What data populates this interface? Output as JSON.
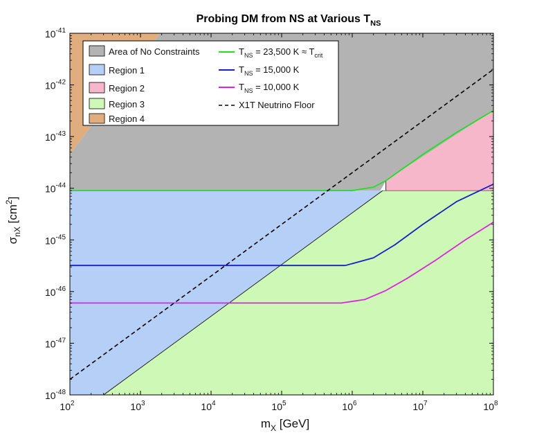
{
  "chart_data": {
    "type": "area",
    "title": "Probing DM from NS at Various T",
    "title_sub": "NS",
    "xlabel": "m",
    "xlabel_sub": "X",
    "xlabel_unit": " [GeV]",
    "ylabel": "σ",
    "ylabel_sub": "nX",
    "ylabel_unit": " [cm",
    "ylabel_unit_sup": "2",
    "ylabel_unit_end": "]",
    "xscale": "log",
    "yscale": "log",
    "xlim": [
      100,
      100000000
    ],
    "ylim": [
      1e-48,
      1e-41
    ],
    "x_ticks": [
      {
        "value": 100,
        "base": "10",
        "exp": "2"
      },
      {
        "value": 1000,
        "base": "10",
        "exp": "3"
      },
      {
        "value": 10000,
        "base": "10",
        "exp": "4"
      },
      {
        "value": 100000,
        "base": "10",
        "exp": "5"
      },
      {
        "value": 1000000,
        "base": "10",
        "exp": "6"
      },
      {
        "value": 10000000,
        "base": "10",
        "exp": "7"
      },
      {
        "value": 100000000,
        "base": "10",
        "exp": "8"
      }
    ],
    "y_ticks": [
      {
        "value": 1e-48,
        "base": "10",
        "exp": "-48"
      },
      {
        "value": 1e-47,
        "base": "10",
        "exp": "-47"
      },
      {
        "value": 1e-46,
        "base": "10",
        "exp": "-46"
      },
      {
        "value": 1e-45,
        "base": "10",
        "exp": "-45"
      },
      {
        "value": 1e-44,
        "base": "10",
        "exp": "-44"
      },
      {
        "value": 1e-43,
        "base": "10",
        "exp": "-43"
      },
      {
        "value": 1e-42,
        "base": "10",
        "exp": "-42"
      },
      {
        "value": 1e-41,
        "base": "10",
        "exp": "-41"
      }
    ],
    "regions": [
      {
        "name": "region-4",
        "label": "Region 4",
        "color": "#e0ad7e",
        "points": [
          [
            100,
            4.5e-44
          ],
          [
            100,
            1e-41
          ],
          [
            1900,
            1e-41
          ]
        ]
      },
      {
        "name": "area-of-no-constraints",
        "label": "Area of No Constraints",
        "color": "#b3b3b3",
        "points": [
          [
            100,
            4.5e-44
          ],
          [
            1900,
            1e-41
          ],
          [
            100000000,
            1e-41
          ],
          [
            100000000,
            3.2e-43
          ],
          [
            3000000,
            1.4e-44
          ],
          [
            2500000,
            9e-45
          ],
          [
            100,
            9e-45
          ]
        ]
      },
      {
        "name": "region-2",
        "label": "Region 2",
        "color": "#f7b7cb",
        "points": [
          [
            3000000,
            1.4e-44
          ],
          [
            100000000,
            3.2e-43
          ],
          [
            100000000,
            9e-45
          ],
          [
            3000000,
            9e-45
          ]
        ]
      },
      {
        "name": "region-1",
        "label": "Region 1",
        "color": "#b5cff7",
        "points": [
          [
            100,
            9e-45
          ],
          [
            2700000,
            9e-45
          ],
          [
            300,
            1e-48
          ],
          [
            100,
            1e-48
          ]
        ]
      },
      {
        "name": "region-3",
        "label": "Region 3",
        "color": "#cdf8b5",
        "points": [
          [
            300,
            1e-48
          ],
          [
            2700000,
            9e-45
          ],
          [
            100000000,
            9e-45
          ],
          [
            100000000,
            1e-48
          ]
        ]
      }
    ],
    "series": [
      {
        "name": "T_NS = 23,500 K ≈ T_crit",
        "label_pre": "T",
        "label_sub": "NS",
        "label_mid": " = 23,500 K ≈ T",
        "label_sub2": "crit",
        "color": "#22dd22",
        "dash": "",
        "points": [
          [
            100,
            9e-45
          ],
          [
            1000000,
            9e-45
          ],
          [
            2000000,
            1.05e-44
          ],
          [
            3000000,
            1.4e-44
          ],
          [
            5000000,
            2.3e-44
          ],
          [
            10000000,
            4.5e-44
          ],
          [
            30000000,
            1.2e-43
          ],
          [
            100000000,
            3.2e-43
          ]
        ]
      },
      {
        "name": "T_NS = 15,000 K",
        "label_pre": "T",
        "label_sub": "NS",
        "label_mid": " = 15,000 K",
        "label_sub2": "",
        "color": "#1a1ad0",
        "dash": "",
        "points": [
          [
            100,
            3.2e-46
          ],
          [
            800000,
            3.2e-46
          ],
          [
            2000000,
            4.5e-46
          ],
          [
            4000000,
            8e-46
          ],
          [
            10000000,
            2e-45
          ],
          [
            30000000,
            5.5e-45
          ],
          [
            100000000,
            1.2e-44
          ]
        ]
      },
      {
        "name": "T_NS = 10,000 K",
        "label_pre": "T",
        "label_sub": "NS",
        "label_mid": " = 10,000 K",
        "label_sub2": "",
        "color": "#e020e0",
        "dash": "",
        "points": [
          [
            100,
            6e-47
          ],
          [
            700000,
            6e-47
          ],
          [
            1500000,
            7e-47
          ],
          [
            3000000,
            1.05e-46
          ],
          [
            6000000,
            1.8e-46
          ],
          [
            15000000,
            4e-46
          ],
          [
            40000000,
            1e-45
          ],
          [
            100000000,
            2.2e-45
          ]
        ]
      },
      {
        "name": "X1T Neutrino Floor",
        "label_pre": "X1T Neutrino Floor",
        "label_sub": "",
        "label_mid": "",
        "label_sub2": "",
        "color": "#000000",
        "dash": "6,4",
        "points": [
          [
            100,
            2e-48
          ],
          [
            100000000,
            2e-42
          ]
        ]
      }
    ],
    "boundary_line": {
      "name": "region-boundary-line",
      "color": "#000000",
      "points": [
        [
          300,
          1e-48
        ],
        [
          2700000,
          9e-45
        ]
      ]
    },
    "legend_position": "top-left"
  }
}
